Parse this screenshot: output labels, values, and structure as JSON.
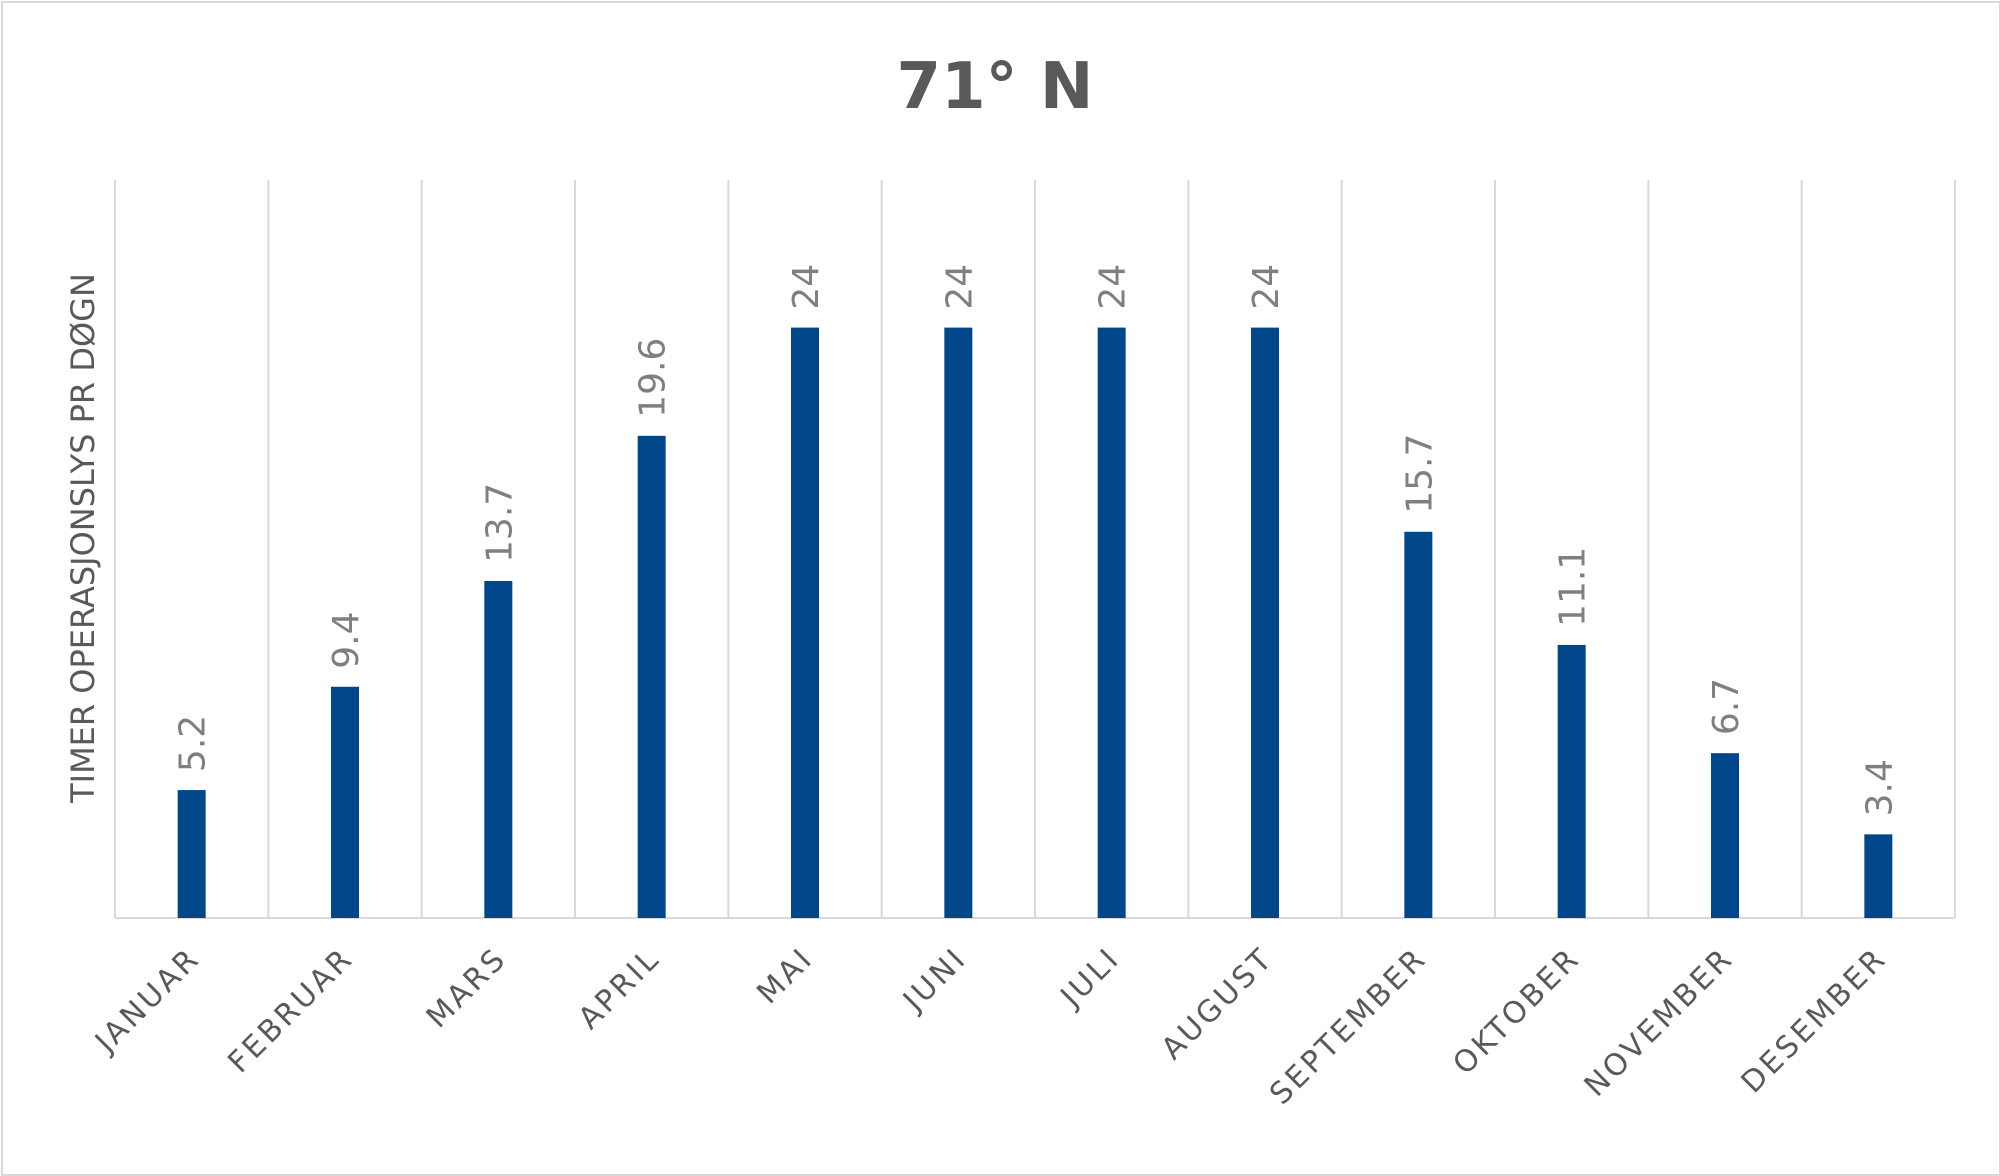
{
  "chart_data": {
    "type": "bar",
    "title": "71° N",
    "xlabel": "",
    "ylabel": "TIMER OPERASJONSLYS PR DØGN",
    "categories": [
      "JANUAR",
      "FEBRUAR",
      "MARS",
      "APRIL",
      "MAI",
      "JUNI",
      "JULI",
      "AUGUST",
      "SEPTEMBER",
      "OKTOBER",
      "NOVEMBER",
      "DESEMBER"
    ],
    "values": [
      5.2,
      9.4,
      13.7,
      19.6,
      24,
      24,
      24,
      24,
      15.7,
      11.1,
      6.7,
      3.4
    ],
    "data_labels": [
      "5.2",
      "9.4",
      "13.7",
      "19.6",
      "24",
      "24",
      "24",
      "24",
      "15.7",
      "11.1",
      "6.7",
      "3.4"
    ],
    "ylim": [
      0,
      30
    ],
    "grid": "vertical",
    "legend": "none",
    "bar_color": "#00468B",
    "gridline_color": "#d9d9d9",
    "text_color": "#595959",
    "data_label_color": "#7f7f7f"
  }
}
